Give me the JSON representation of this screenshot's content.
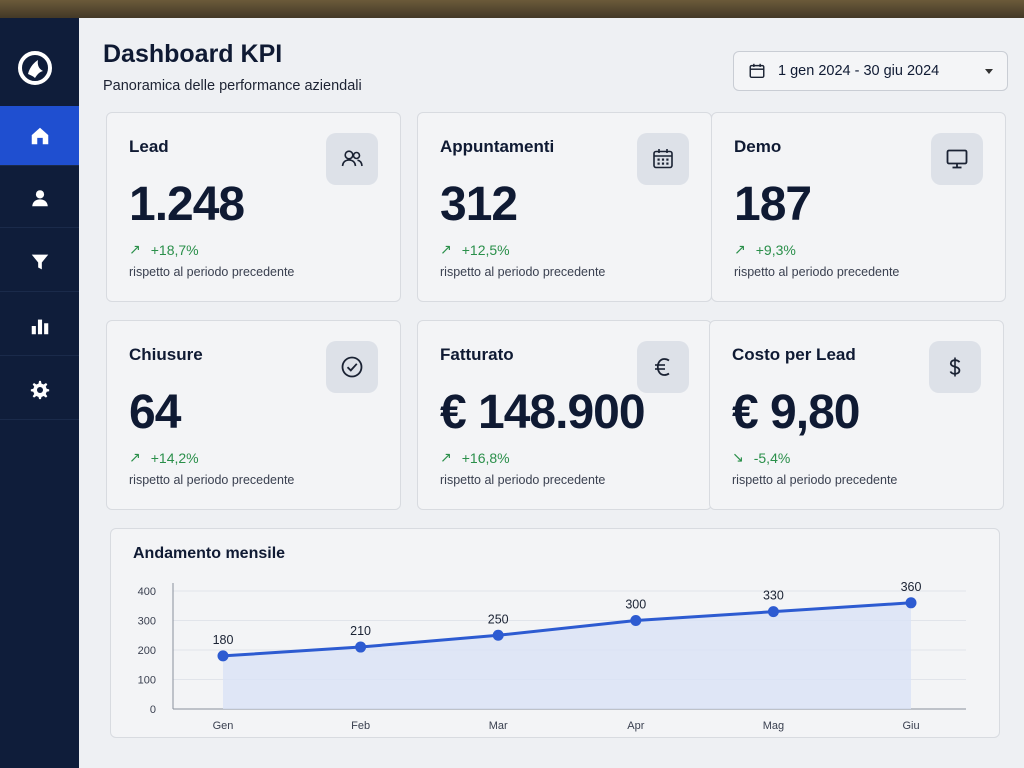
{
  "header": {
    "title": "Dashboard KPI",
    "subtitle": "Panoramica delle performance aziendali",
    "date_range": "1 gen 2024 - 30 giu 2024"
  },
  "sidebar": {
    "items": [
      {
        "icon": "home-icon",
        "active": true
      },
      {
        "icon": "user-icon",
        "active": false
      },
      {
        "icon": "funnel-icon",
        "active": false
      },
      {
        "icon": "bar-chart-icon",
        "active": false
      },
      {
        "icon": "gear-icon",
        "active": false
      }
    ]
  },
  "kpis": [
    {
      "title": "Lead",
      "value": "1.248",
      "delta": "+18,7%",
      "direction": "up",
      "compare": "rispetto al periodo precedente",
      "icon": "users-icon"
    },
    {
      "title": "Appuntamenti",
      "value": "312",
      "delta": "+12,5%",
      "direction": "up",
      "compare": "rispetto al periodo precedente",
      "icon": "calendar-icon"
    },
    {
      "title": "Demo",
      "value": "187",
      "delta": "+9,3%",
      "direction": "up",
      "compare": "rispetto al periodo precedente",
      "icon": "monitor-icon"
    },
    {
      "title": "Chiusure",
      "value": "64",
      "delta": "+14,2%",
      "direction": "up",
      "compare": "rispetto al periodo precedente",
      "icon": "check-circle-icon"
    },
    {
      "title": "Fatturato",
      "value": "€ 148.900",
      "delta": "+16,8%",
      "direction": "up",
      "compare": "rispetto al periodo precedente",
      "icon": "euro-icon"
    },
    {
      "title": "Costo per Lead",
      "value": "€ 9,80",
      "delta": "-5,4%",
      "direction": "down",
      "compare": "rispetto al periodo precedente",
      "icon": "dollar-icon"
    }
  ],
  "colors": {
    "sidebar": "#0f1d3a",
    "accent": "#1f4fd0",
    "line": "#2d5bd1",
    "positive": "#2a8f4a"
  },
  "chart_data": {
    "type": "line",
    "title": "Andamento mensile",
    "categories": [
      "Gen",
      "Feb",
      "Mar",
      "Apr",
      "Mag",
      "Giu"
    ],
    "series": [
      {
        "values": [
          180,
          210,
          250,
          300,
          330,
          360
        ]
      }
    ],
    "yticks": [
      "0",
      "100",
      "200",
      "300",
      "400"
    ],
    "ylim": [
      0,
      400
    ],
    "data_labels": [
      "180",
      "210",
      "250",
      "300",
      "330",
      "360"
    ],
    "grid": true,
    "area_fill": true
  }
}
